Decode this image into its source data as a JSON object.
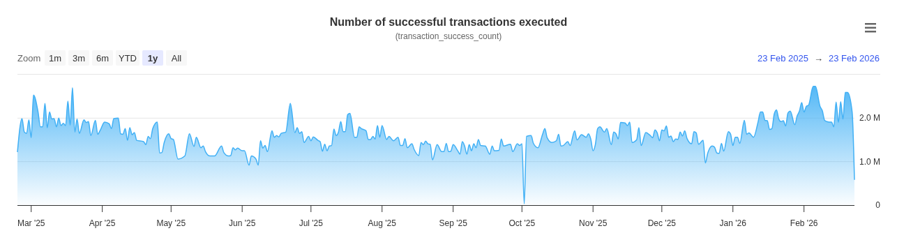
{
  "chart_data": {
    "type": "area",
    "title": "Number of successful transactions executed",
    "subtitle": "(transaction_success_count)",
    "annotations": [
      "Zoom",
      "1m",
      "3m",
      "6m",
      "YTD",
      "1y",
      "All",
      "23 Feb 2025",
      "→",
      "23 Feb 2026"
    ],
    "color": "#41b0f5",
    "grid": "y",
    "xlim": [
      "2025-02-23",
      "2026-02-23"
    ],
    "xticks": [
      {
        "value": "2025-03-01",
        "label": "Mar '25"
      },
      {
        "value": "2025-04-01",
        "label": "Apr '25"
      },
      {
        "value": "2025-05-01",
        "label": "May '25"
      },
      {
        "value": "2025-06-01",
        "label": "Jun '25"
      },
      {
        "value": "2025-07-01",
        "label": "Jul '25"
      },
      {
        "value": "2025-08-01",
        "label": "Aug '25"
      },
      {
        "value": "2025-09-01",
        "label": "Sep '25"
      },
      {
        "value": "2025-10-01",
        "label": "Oct '25"
      },
      {
        "value": "2025-11-01",
        "label": "Nov '25"
      },
      {
        "value": "2025-12-01",
        "label": "Dec '25"
      },
      {
        "value": "2026-01-01",
        "label": "Jan '26"
      },
      {
        "value": "2026-02-01",
        "label": "Feb '26"
      }
    ],
    "ylim": [
      0,
      3000000
    ],
    "yticks": [
      0,
      {
        "value": 1000000,
        "label": "1.0 M"
      },
      {
        "value": 2000000,
        "label": "2.0 M"
      }
    ],
    "x": [
      "2025-02-23",
      "2025-02-25",
      "2025-02-26",
      "2025-02-27",
      "2025-02-28",
      "2025-03-01",
      "2025-03-02",
      "2025-03-04",
      "2025-03-05",
      "2025-03-06",
      "2025-03-07",
      "2025-03-08",
      "2025-03-09",
      "2025-03-10",
      "2025-03-11",
      "2025-03-12",
      "2025-03-13",
      "2025-03-14",
      "2025-03-15",
      "2025-03-16",
      "2025-03-17",
      "2025-03-18",
      "2025-03-19",
      "2025-03-20",
      "2025-03-21",
      "2025-03-22",
      "2025-03-24",
      "2025-03-25",
      "2025-03-26",
      "2025-03-27",
      "2025-03-29",
      "2025-03-30",
      "2025-03-31",
      "2025-04-02",
      "2025-04-04",
      "2025-04-05",
      "2025-04-06",
      "2025-04-08",
      "2025-04-09",
      "2025-04-10",
      "2025-04-11",
      "2025-04-12",
      "2025-04-13",
      "2025-04-14",
      "2025-04-15",
      "2025-04-16",
      "2025-04-19",
      "2025-04-20",
      "2025-04-21",
      "2025-04-22",
      "2025-04-23",
      "2025-04-25",
      "2025-04-26",
      "2025-04-27",
      "2025-04-28",
      "2025-04-30",
      "2025-05-01",
      "2025-05-02",
      "2025-05-04",
      "2025-05-07",
      "2025-05-09",
      "2025-05-11",
      "2025-05-12",
      "2025-05-14",
      "2025-05-15",
      "2025-05-16",
      "2025-05-18",
      "2025-05-20",
      "2025-05-23",
      "2025-05-24",
      "2025-05-26",
      "2025-05-27",
      "2025-05-28",
      "2025-05-29",
      "2025-05-30",
      "2025-06-01",
      "2025-06-02",
      "2025-06-04",
      "2025-06-05",
      "2025-06-07",
      "2025-06-08",
      "2025-06-09",
      "2025-06-10",
      "2025-06-11",
      "2025-06-12",
      "2025-06-14",
      "2025-06-15",
      "2025-06-16",
      "2025-06-17",
      "2025-06-18",
      "2025-06-20",
      "2025-06-22",
      "2025-06-24",
      "2025-06-25",
      "2025-06-26",
      "2025-06-27",
      "2025-06-28",
      "2025-06-30",
      "2025-07-01",
      "2025-07-02",
      "2025-07-04",
      "2025-07-05",
      "2025-07-06",
      "2025-07-07",
      "2025-07-08",
      "2025-07-09",
      "2025-07-10",
      "2025-07-11",
      "2025-07-12",
      "2025-07-13",
      "2025-07-14",
      "2025-07-15",
      "2025-07-16",
      "2025-07-17",
      "2025-07-18",
      "2025-07-20",
      "2025-07-21",
      "2025-07-22",
      "2025-07-23",
      "2025-07-25",
      "2025-07-26",
      "2025-07-27",
      "2025-07-28",
      "2025-07-29",
      "2025-07-30",
      "2025-07-31",
      "2025-08-01",
      "2025-08-03",
      "2025-08-04",
      "2025-08-06",
      "2025-08-08",
      "2025-08-09",
      "2025-08-10",
      "2025-08-11",
      "2025-08-12",
      "2025-08-14",
      "2025-08-15",
      "2025-08-17",
      "2025-08-18",
      "2025-08-19",
      "2025-08-20",
      "2025-08-21",
      "2025-08-22",
      "2025-08-23",
      "2025-08-25",
      "2025-08-27",
      "2025-08-28",
      "2025-08-29",
      "2025-08-30",
      "2025-08-31",
      "2025-09-01",
      "2025-09-03",
      "2025-09-04",
      "2025-09-05",
      "2025-09-06",
      "2025-09-07",
      "2025-09-08",
      "2025-09-09",
      "2025-09-10",
      "2025-09-11",
      "2025-09-12",
      "2025-09-13",
      "2025-09-15",
      "2025-09-17",
      "2025-09-18",
      "2025-09-19",
      "2025-09-21",
      "2025-09-22",
      "2025-09-23",
      "2025-09-26",
      "2025-09-27",
      "2025-09-29",
      "2025-09-30",
      "2025-10-01",
      "2025-10-02",
      "2025-10-03",
      "2025-10-05",
      "2025-10-06",
      "2025-10-08",
      "2025-10-10",
      "2025-10-11",
      "2025-10-12",
      "2025-10-14",
      "2025-10-16",
      "2025-10-17",
      "2025-10-18",
      "2025-10-19",
      "2025-10-21",
      "2025-10-22",
      "2025-10-24",
      "2025-10-25",
      "2025-10-27",
      "2025-10-29",
      "2025-10-30",
      "2025-10-31",
      "2025-11-01",
      "2025-11-02",
      "2025-11-03",
      "2025-11-04",
      "2025-11-06",
      "2025-11-07",
      "2025-11-09",
      "2025-11-10",
      "2025-11-11",
      "2025-11-12",
      "2025-11-13",
      "2025-11-15",
      "2025-11-16",
      "2025-11-17",
      "2025-11-18",
      "2025-11-20",
      "2025-11-21",
      "2025-11-22",
      "2025-11-24",
      "2025-11-26",
      "2025-11-27",
      "2025-11-28",
      "2025-11-29",
      "2025-11-30",
      "2025-12-01",
      "2025-12-02",
      "2025-12-03",
      "2025-12-04",
      "2025-12-05",
      "2025-12-06",
      "2025-12-07",
      "2025-12-08",
      "2025-12-09",
      "2025-12-10",
      "2025-12-11",
      "2025-12-12",
      "2025-12-14",
      "2025-12-15",
      "2025-12-16",
      "2025-12-17",
      "2025-12-19",
      "2025-12-20",
      "2025-12-21",
      "2025-12-23",
      "2025-12-24",
      "2025-12-25",
      "2025-12-26",
      "2025-12-27",
      "2025-12-28",
      "2025-12-30",
      "2025-12-31",
      "2026-01-01",
      "2026-01-02",
      "2026-01-03",
      "2026-01-04",
      "2026-01-06",
      "2026-01-07",
      "2026-01-08",
      "2026-01-10",
      "2026-01-12",
      "2026-01-13",
      "2026-01-14",
      "2026-01-15",
      "2026-01-16",
      "2026-01-17",
      "2026-01-18",
      "2026-01-19",
      "2026-01-20",
      "2026-01-21",
      "2026-01-22",
      "2026-01-23",
      "2026-01-24",
      "2026-01-25",
      "2026-01-26",
      "2026-01-28",
      "2026-01-29",
      "2026-01-30",
      "2026-01-31",
      "2026-02-01",
      "2026-02-02",
      "2026-02-03",
      "2026-02-05",
      "2026-02-06",
      "2026-02-08",
      "2026-02-09",
      "2026-02-10",
      "2026-02-11",
      "2026-02-12",
      "2026-02-13",
      "2026-02-14",
      "2026-02-15",
      "2026-02-16",
      "2026-02-17",
      "2026-02-18",
      "2026-02-19",
      "2026-02-20",
      "2026-02-22",
      "2026-02-23"
    ],
    "values": [
      1220000,
      1990000,
      1680000,
      1650000,
      1960000,
      1550000,
      2530000,
      2140000,
      1800000,
      1800000,
      2340000,
      1780000,
      2140000,
      1980000,
      1990000,
      1800000,
      2000000,
      1830000,
      1880000,
      1830000,
      2390000,
      1840000,
      2700000,
      1680000,
      1980000,
      1650000,
      1960000,
      1900000,
      1920000,
      1600000,
      1950000,
      1630000,
      1710000,
      1910000,
      1870000,
      1760000,
      1990000,
      2000000,
      1640000,
      1630000,
      1760000,
      1490000,
      1780000,
      1620000,
      1670000,
      1490000,
      1460000,
      1390000,
      1580000,
      1530000,
      1760000,
      1910000,
      1200000,
      1210000,
      1440000,
      1640000,
      1530000,
      1510000,
      1060000,
      1130000,
      1640000,
      1350000,
      1560000,
      1320000,
      1360000,
      1230000,
      1130000,
      1130000,
      1360000,
      1210000,
      1130000,
      1140000,
      1320000,
      1270000,
      1310000,
      1250000,
      1250000,
      920000,
      1130000,
      1060000,
      920000,
      1480000,
      1310000,
      1370000,
      1230000,
      1710000,
      1560000,
      1600000,
      1570000,
      1650000,
      1680000,
      2340000,
      1670000,
      1780000,
      1650000,
      1690000,
      1440000,
      1580000,
      1480000,
      1570000,
      1490000,
      1460000,
      1240000,
      1400000,
      1250000,
      1360000,
      1370000,
      1750000,
      1600000,
      1680000,
      1920000,
      1690000,
      1690000,
      2080000,
      2110000,
      1560000,
      1560000,
      1800000,
      1760000,
      1710000,
      1510000,
      1510000,
      1580000,
      1520000,
      1830000,
      1560000,
      1830000,
      1510000,
      1580000,
      1480000,
      1560000,
      1370000,
      1370000,
      1530000,
      1320000,
      1410000,
      1280000,
      1140000,
      1440000,
      1390000,
      1470000,
      1410000,
      1400000,
      1040000,
      1390000,
      1230000,
      1230000,
      1420000,
      1230000,
      1240000,
      1390000,
      1250000,
      1170000,
      1460000,
      1360000,
      1170000,
      1390000,
      1250000,
      1410000,
      1320000,
      1510000,
      1370000,
      1360000,
      1170000,
      1360000,
      1250000,
      1260000,
      1520000,
      1360000,
      1400000,
      1230000,
      1410000,
      1370000,
      1410000,
      30000,
      1580000,
      1600000,
      1420000,
      1320000,
      1630000,
      1760000,
      1550000,
      1440000,
      1480000,
      1630000,
      1360000,
      1370000,
      1460000,
      1370000,
      1710000,
      1500000,
      1620000,
      1560000,
      1640000,
      1520000,
      1250000,
      1390000,
      1760000,
      1800000,
      1680000,
      1760000,
      1390000,
      1680000,
      1640000,
      1520000,
      1900000,
      1890000,
      1830000,
      1910000,
      1440000,
      1500000,
      1780000,
      1370000,
      1670000,
      1600000,
      1550000,
      1730000,
      1660000,
      1480000,
      1730000,
      1710000,
      1820000,
      1560000,
      1590000,
      1460000,
      1520000,
      1510000,
      1680000,
      1590000,
      1710000,
      1530000,
      1410000,
      1690000,
      1660000,
      1400000,
      1490000,
      970000,
      1190000,
      1360000,
      1330000,
      1200000,
      1190000,
      1420000,
      1240000,
      1690000,
      1630000,
      1370000,
      1560000,
      1560000,
      1420000,
      1950000,
      1630000,
      1660000,
      1560000,
      1920000,
      2140000,
      2140000,
      1950000,
      1940000,
      1740000,
      1760000,
      2090000,
      2190000,
      1980000,
      1920000,
      1940000,
      1820000,
      2120000,
      2160000,
      1850000,
      2050000,
      2160000,
      2360000,
      2140000,
      2270000,
      2300000,
      2730000,
      2730000,
      2270000,
      2170000,
      1950000,
      1920000,
      1910000,
      1910000,
      1800000,
      2370000,
      1900000,
      2380000,
      1980000,
      2590000,
      2590000,
      2140000,
      580000
    ]
  }
}
